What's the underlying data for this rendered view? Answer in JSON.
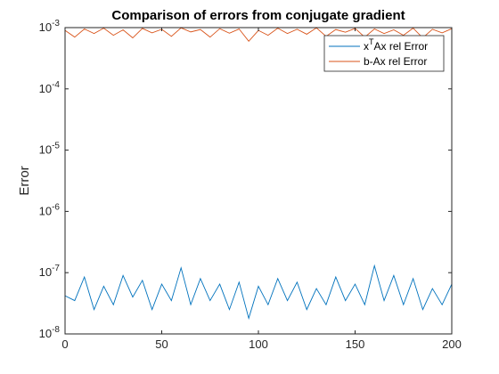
{
  "chart_data": {
    "type": "line",
    "title": "Comparison of errors from conjugate gradient",
    "xlabel": "",
    "ylabel": "Error",
    "xlim": [
      0,
      200
    ],
    "ylim": [
      1e-08,
      0.001
    ],
    "yscale": "log",
    "x_ticks": [
      "0",
      "50",
      "100",
      "150",
      "200"
    ],
    "y_ticks": [
      {
        "base": "10",
        "exp": "-8"
      },
      {
        "base": "10",
        "exp": "-7"
      },
      {
        "base": "10",
        "exp": "-6"
      },
      {
        "base": "10",
        "exp": "-5"
      },
      {
        "base": "10",
        "exp": "-4"
      },
      {
        "base": "10",
        "exp": "-3"
      }
    ],
    "grid": false,
    "legend_position": "top-right",
    "x": [
      0,
      5,
      10,
      15,
      20,
      25,
      30,
      35,
      40,
      45,
      50,
      55,
      60,
      65,
      70,
      75,
      80,
      85,
      90,
      95,
      100,
      105,
      110,
      115,
      120,
      125,
      130,
      135,
      140,
      145,
      150,
      155,
      160,
      165,
      170,
      175,
      180,
      185,
      190,
      195,
      200
    ],
    "series": [
      {
        "name_parts": {
          "pre": "x",
          "sup": "T",
          "post": "Ax rel Error"
        },
        "color": "#0072BD",
        "values": [
          4.2e-08,
          3.5e-08,
          8.5e-08,
          2.5e-08,
          6e-08,
          3e-08,
          9e-08,
          4e-08,
          7.5e-08,
          2.5e-08,
          6.5e-08,
          3.5e-08,
          1.2e-07,
          3e-08,
          8e-08,
          3.5e-08,
          6.5e-08,
          2.5e-08,
          7e-08,
          1.8e-08,
          6e-08,
          3e-08,
          8e-08,
          3.5e-08,
          7e-08,
          2.5e-08,
          5.5e-08,
          3e-08,
          8.5e-08,
          3.5e-08,
          6.5e-08,
          3e-08,
          1.3e-07,
          3.5e-08,
          9e-08,
          3e-08,
          8e-08,
          2.5e-08,
          5.5e-08,
          3e-08,
          6.5e-08
        ]
      },
      {
        "name": "b-Ax rel Error",
        "color": "#D95319",
        "values": [
          0.0009,
          0.0007,
          0.00095,
          0.0008,
          0.00098,
          0.00075,
          0.00092,
          0.00068,
          0.00097,
          0.00082,
          0.00094,
          0.00072,
          0.00099,
          0.00085,
          0.00093,
          0.0007,
          0.00096,
          0.00081,
          0.00095,
          0.0006,
          0.0009,
          0.00075,
          0.00098,
          0.0008,
          0.00094,
          0.00078,
          0.00099,
          0.00072,
          0.00093,
          0.00084,
          0.00097,
          0.0007,
          0.00095,
          0.0008,
          0.00092,
          0.00075,
          0.00098,
          0.00068,
          0.00094,
          0.00082,
          0.00096
        ]
      }
    ]
  }
}
